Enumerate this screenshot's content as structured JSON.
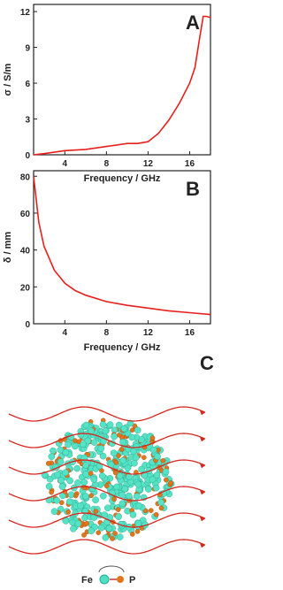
{
  "chart_data": [
    {
      "type": "line",
      "panel_label": "A",
      "ylabel": "σ / S/m",
      "xlabel": "Frequency / GHz",
      "color": "#e8201c",
      "x": [
        1,
        2,
        4,
        6,
        8,
        10,
        11,
        12,
        13,
        14,
        15,
        16,
        16.5,
        17,
        17.3,
        17.6,
        18
      ],
      "values": [
        0,
        0.1,
        0.35,
        0.45,
        0.7,
        0.95,
        0.95,
        1.1,
        1.8,
        2.9,
        4.3,
        6.0,
        7.3,
        10,
        11.6,
        11.6,
        11.5
      ],
      "xlim": [
        1,
        18
      ],
      "xticks": [
        4,
        8,
        12,
        16
      ],
      "ylim": [
        0,
        12.6
      ],
      "yticks": [
        0,
        3,
        6,
        9,
        12
      ]
    },
    {
      "type": "line",
      "panel_label": "B",
      "ylabel": "δ / mm",
      "xlabel": "Frequency / GHz",
      "color": "#e8201c",
      "x": [
        1,
        1.5,
        2,
        3,
        4,
        5,
        6,
        8,
        10,
        12,
        14,
        16,
        18
      ],
      "values": [
        80,
        55,
        42,
        29,
        22,
        18,
        15.5,
        12,
        10,
        8.5,
        7,
        6,
        5
      ],
      "xlim": [
        1,
        18
      ],
      "xticks": [
        4,
        8,
        12,
        16
      ],
      "ylim": [
        0,
        83
      ],
      "yticks": [
        0,
        20,
        40,
        60,
        80
      ]
    }
  ],
  "illustration": {
    "panel_label": "C",
    "legend": [
      "Fe",
      "P"
    ]
  }
}
